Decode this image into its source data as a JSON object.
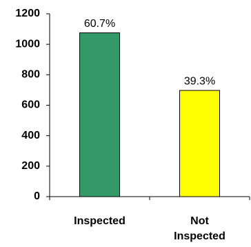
{
  "chart_data": {
    "type": "bar",
    "categories": [
      "Inspected",
      "Not Inspected"
    ],
    "values": [
      1075,
      697
    ],
    "value_labels": [
      "60.7%",
      "39.3%"
    ],
    "colors": [
      "#339966",
      "#ffff00"
    ],
    "ylim": [
      0,
      1200
    ],
    "yticks": [
      0,
      200,
      400,
      600,
      800,
      1000,
      1200
    ],
    "grid": false
  }
}
